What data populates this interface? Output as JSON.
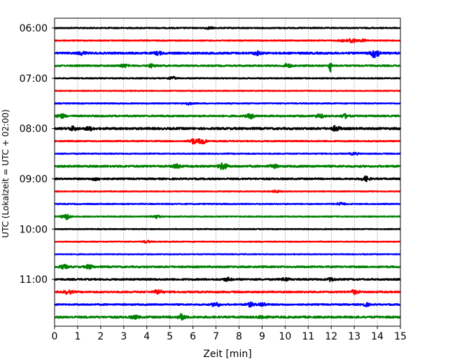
{
  "chart_data": {
    "type": "line",
    "subtype": "helicorder",
    "xlabel": "Zeit  [min]",
    "ylabel": "UTC (Lokalzeit = UTC + 02:00)",
    "xlim": [
      0,
      15
    ],
    "x_ticks": [
      "0",
      "1",
      "2",
      "3",
      "4",
      "5",
      "6",
      "7",
      "8",
      "9",
      "10",
      "11",
      "12",
      "13",
      "14",
      "15"
    ],
    "y_tick_labels": [
      "06:00",
      "07:00",
      "08:00",
      "09:00",
      "10:00",
      "11:00"
    ],
    "line_interval_minutes": 15,
    "grid": "vertical dotted",
    "trace_colors": [
      "#000000",
      "#ff0000",
      "#0000ff",
      "#008000"
    ],
    "traces": [
      {
        "start": "06:00",
        "color": "#000000",
        "noise": 0.7,
        "events": [
          [
            6.7,
            1.2
          ]
        ]
      },
      {
        "start": "06:15",
        "color": "#ff0000",
        "noise": 0.6,
        "events": [
          [
            12.9,
            3.5
          ],
          [
            12.5,
            1.5
          ],
          [
            13.4,
            1.5
          ]
        ]
      },
      {
        "start": "06:30",
        "color": "#0000ff",
        "noise": 1.2,
        "events": [
          [
            1.2,
            2.0
          ],
          [
            4.5,
            2.0
          ],
          [
            8.8,
            2.2
          ],
          [
            13.9,
            6.0
          ]
        ]
      },
      {
        "start": "06:45",
        "color": "#008000",
        "noise": 0.9,
        "events": [
          [
            3.0,
            2.0
          ],
          [
            4.2,
            2.0
          ],
          [
            10.1,
            2.5
          ],
          [
            11.95,
            14.0
          ]
        ]
      },
      {
        "start": "07:00",
        "color": "#000000",
        "noise": 0.6,
        "events": [
          [
            5.1,
            2.0
          ]
        ]
      },
      {
        "start": "07:15",
        "color": "#ff0000",
        "noise": 0.5,
        "events": []
      },
      {
        "start": "07:30",
        "color": "#0000ff",
        "noise": 0.6,
        "events": [
          [
            5.8,
            1.5
          ]
        ]
      },
      {
        "start": "07:45",
        "color": "#008000",
        "noise": 1.0,
        "events": [
          [
            0.3,
            2.5
          ],
          [
            8.5,
            3.0
          ],
          [
            11.5,
            2.5
          ],
          [
            12.6,
            2.5
          ]
        ]
      },
      {
        "start": "08:00",
        "color": "#000000",
        "noise": 1.3,
        "events": [
          [
            0.8,
            2.5
          ],
          [
            1.5,
            2.0
          ],
          [
            12.2,
            3.0
          ]
        ]
      },
      {
        "start": "08:15",
        "color": "#ff0000",
        "noise": 0.7,
        "events": [
          [
            6.0,
            3.5
          ],
          [
            6.4,
            4.0
          ]
        ]
      },
      {
        "start": "08:30",
        "color": "#0000ff",
        "noise": 0.6,
        "events": [
          [
            13.0,
            1.5
          ]
        ]
      },
      {
        "start": "08:45",
        "color": "#008000",
        "noise": 1.2,
        "events": [
          [
            5.3,
            2.5
          ],
          [
            7.3,
            4.5
          ],
          [
            9.5,
            2.0
          ]
        ]
      },
      {
        "start": "09:00",
        "color": "#000000",
        "noise": 1.0,
        "events": [
          [
            1.8,
            2.0
          ],
          [
            13.5,
            3.0
          ]
        ]
      },
      {
        "start": "09:15",
        "color": "#ff0000",
        "noise": 0.5,
        "events": [
          [
            9.6,
            1.5
          ]
        ]
      },
      {
        "start": "09:30",
        "color": "#0000ff",
        "noise": 0.6,
        "events": [
          [
            12.4,
            2.0
          ]
        ]
      },
      {
        "start": "09:45",
        "color": "#008000",
        "noise": 0.6,
        "events": [
          [
            0.5,
            4.0
          ],
          [
            4.4,
            2.0
          ]
        ]
      },
      {
        "start": "10:00",
        "color": "#000000",
        "noise": 0.5,
        "events": []
      },
      {
        "start": "10:15",
        "color": "#ff0000",
        "noise": 0.5,
        "events": [
          [
            4.0,
            1.5
          ]
        ]
      },
      {
        "start": "10:30",
        "color": "#0000ff",
        "noise": 0.5,
        "events": []
      },
      {
        "start": "10:45",
        "color": "#008000",
        "noise": 1.0,
        "events": [
          [
            0.4,
            2.5
          ],
          [
            1.5,
            2.5
          ]
        ]
      },
      {
        "start": "11:00",
        "color": "#000000",
        "noise": 1.0,
        "events": [
          [
            7.5,
            2.0
          ],
          [
            10.0,
            2.0
          ],
          [
            12.0,
            2.0
          ]
        ]
      },
      {
        "start": "11:15",
        "color": "#ff0000",
        "noise": 1.0,
        "events": [
          [
            0.6,
            2.5
          ],
          [
            4.5,
            3.0
          ],
          [
            13.0,
            2.5
          ]
        ]
      },
      {
        "start": "11:30",
        "color": "#0000ff",
        "noise": 0.9,
        "events": [
          [
            7.0,
            3.0
          ],
          [
            8.5,
            2.5
          ],
          [
            9.0,
            2.5
          ],
          [
            13.5,
            2.0
          ]
        ]
      },
      {
        "start": "11:45",
        "color": "#008000",
        "noise": 1.2,
        "events": [
          [
            3.5,
            2.0
          ],
          [
            5.5,
            3.5
          ],
          [
            9.0,
            2.0
          ]
        ]
      }
    ]
  }
}
